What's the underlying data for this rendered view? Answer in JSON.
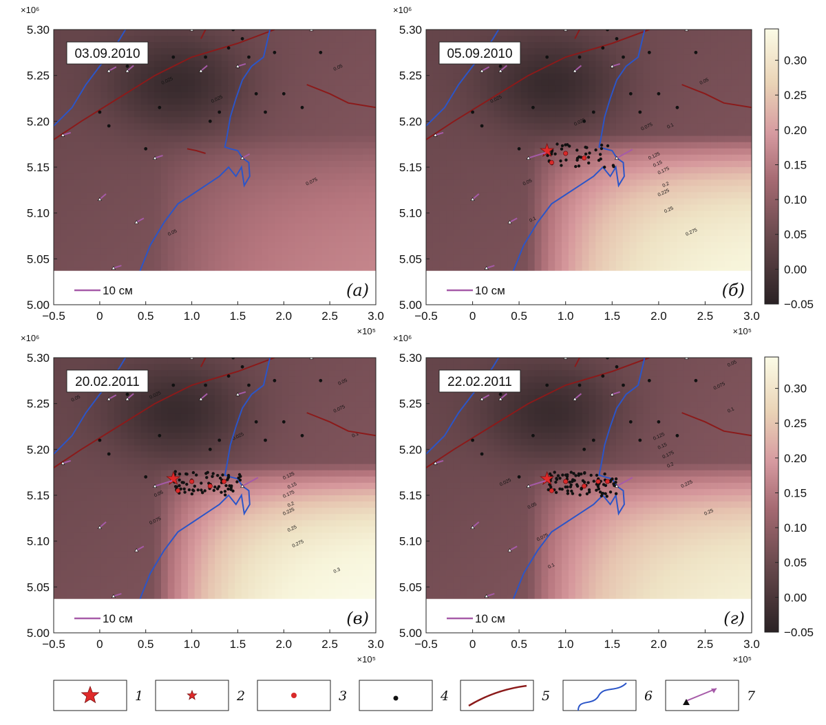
{
  "colors": {
    "field_low": "#2a2224",
    "field_mid": "#c78a90",
    "field_high": "#fbfbe6",
    "fault": "#8b1a1a",
    "coast": "#2b55c8",
    "vector": "#a65aa8",
    "epicenter_main": "#e02a2a",
    "aftershock_red": "#d82a2a",
    "aftershock_black": "#111111"
  },
  "axes": {
    "x_ticks": [
      "−0.5",
      "0",
      "0.5",
      "1.0",
      "1.5",
      "2.0",
      "2.5",
      "3.0"
    ],
    "y_ticks": [
      "5.00",
      "5.05",
      "5.10",
      "5.15",
      "5.20",
      "5.25",
      "5.30"
    ],
    "x_multiplier": "×10⁵",
    "y_multiplier": "×10⁶",
    "x_range": [
      -0.5,
      3.0
    ],
    "y_range": [
      5.0,
      5.3
    ]
  },
  "colorbar": {
    "ticks": [
      "0.30",
      "0.25",
      "0.20",
      "0.15",
      "0.10",
      "0.05",
      "0.00",
      "−0.05"
    ],
    "range": [
      -0.05,
      0.345
    ]
  },
  "scale_label": "10 см",
  "panels": [
    {
      "date": "03.09.2010",
      "letter": "(а)",
      "max_value": 0.08,
      "slope": 0.3,
      "cluster": 0,
      "contour_labels": [
        {
          "text": "0.025",
          "x": 0.68,
          "y": 5.24
        },
        {
          "text": "0.025",
          "x": 1.22,
          "y": 5.22
        },
        {
          "text": "0.05",
          "x": 2.55,
          "y": 5.255
        },
        {
          "text": "0.075",
          "x": 2.25,
          "y": 5.13
        },
        {
          "text": "0.05",
          "x": 0.75,
          "y": 5.075
        }
      ]
    },
    {
      "date": "05.09.2010",
      "letter": "(б)",
      "max_value": 0.29,
      "slope": 0.25,
      "cluster": 1,
      "contour_labels": [
        {
          "text": "0.025",
          "x": 0.2,
          "y": 5.22
        },
        {
          "text": "0.025",
          "x": 1.1,
          "y": 5.195
        },
        {
          "text": "0.05",
          "x": 2.45,
          "y": 5.24
        },
        {
          "text": "0.075",
          "x": 1.82,
          "y": 5.19
        },
        {
          "text": "0.1",
          "x": 2.1,
          "y": 5.192
        },
        {
          "text": "0.125",
          "x": 1.9,
          "y": 5.158
        },
        {
          "text": "0.15",
          "x": 1.95,
          "y": 5.15
        },
        {
          "text": "0.175",
          "x": 2.0,
          "y": 5.142
        },
        {
          "text": "0.2",
          "x": 2.05,
          "y": 5.128
        },
        {
          "text": "0.225",
          "x": 2.0,
          "y": 5.118
        },
        {
          "text": "0.25",
          "x": 2.07,
          "y": 5.1
        },
        {
          "text": "0.275",
          "x": 2.3,
          "y": 5.075
        },
        {
          "text": "0.05",
          "x": 0.55,
          "y": 5.13
        },
        {
          "text": "0.1",
          "x": 0.62,
          "y": 5.09
        }
      ]
    },
    {
      "date": "20.02.2011",
      "letter": "(в)",
      "max_value": 0.325,
      "slope": 0.3,
      "cluster": 2,
      "contour_labels": [
        {
          "text": "0.05",
          "x": -0.3,
          "y": 5.252
        },
        {
          "text": "0.025",
          "x": 0.55,
          "y": 5.255
        },
        {
          "text": "0.025",
          "x": 1.45,
          "y": 5.21
        },
        {
          "text": "0.05",
          "x": 2.6,
          "y": 5.27
        },
        {
          "text": "0.075",
          "x": 2.55,
          "y": 5.24
        },
        {
          "text": "0.1",
          "x": 2.75,
          "y": 5.213
        },
        {
          "text": "0.125",
          "x": 2.0,
          "y": 5.167
        },
        {
          "text": "0.15",
          "x": 2.05,
          "y": 5.157
        },
        {
          "text": "0.175",
          "x": 2.0,
          "y": 5.147
        },
        {
          "text": "0.2",
          "x": 2.05,
          "y": 5.137
        },
        {
          "text": "0.225",
          "x": 2.0,
          "y": 5.128
        },
        {
          "text": "0.25",
          "x": 2.05,
          "y": 5.11
        },
        {
          "text": "0.275",
          "x": 2.1,
          "y": 5.093
        },
        {
          "text": "0.3",
          "x": 2.55,
          "y": 5.065
        },
        {
          "text": "0.05",
          "x": 0.6,
          "y": 5.148
        },
        {
          "text": "0.075",
          "x": 0.55,
          "y": 5.118
        }
      ]
    },
    {
      "date": "22.02.2011",
      "letter": "(г)",
      "max_value": 0.265,
      "slope": 0.35,
      "cluster": 3,
      "contour_labels": [
        {
          "text": "0.05",
          "x": 2.75,
          "y": 5.29
        },
        {
          "text": "0.075",
          "x": 2.6,
          "y": 5.265
        },
        {
          "text": "0.1",
          "x": 2.75,
          "y": 5.24
        },
        {
          "text": "0.125",
          "x": 1.95,
          "y": 5.21
        },
        {
          "text": "0.15",
          "x": 2.0,
          "y": 5.2
        },
        {
          "text": "0.175",
          "x": 2.05,
          "y": 5.19
        },
        {
          "text": "0.2",
          "x": 2.1,
          "y": 5.18
        },
        {
          "text": "0.225",
          "x": 2.25,
          "y": 5.158
        },
        {
          "text": "0.25",
          "x": 2.5,
          "y": 5.128
        },
        {
          "text": "0.025",
          "x": 0.3,
          "y": 5.16
        },
        {
          "text": "0.05",
          "x": 0.6,
          "y": 5.135
        },
        {
          "text": "0.075",
          "x": 0.7,
          "y": 5.1
        },
        {
          "text": "0.1",
          "x": 0.82,
          "y": 5.07
        }
      ]
    }
  ],
  "legend": [
    {
      "symbol": "big-star",
      "label": "1"
    },
    {
      "symbol": "small-star",
      "label": "2"
    },
    {
      "symbol": "red-dot",
      "label": "3"
    },
    {
      "symbol": "black-dot",
      "label": "4"
    },
    {
      "symbol": "fault-line",
      "label": "5"
    },
    {
      "symbol": "coastline",
      "label": "6"
    },
    {
      "symbol": "gnss-vector",
      "label": "7"
    }
  ]
}
